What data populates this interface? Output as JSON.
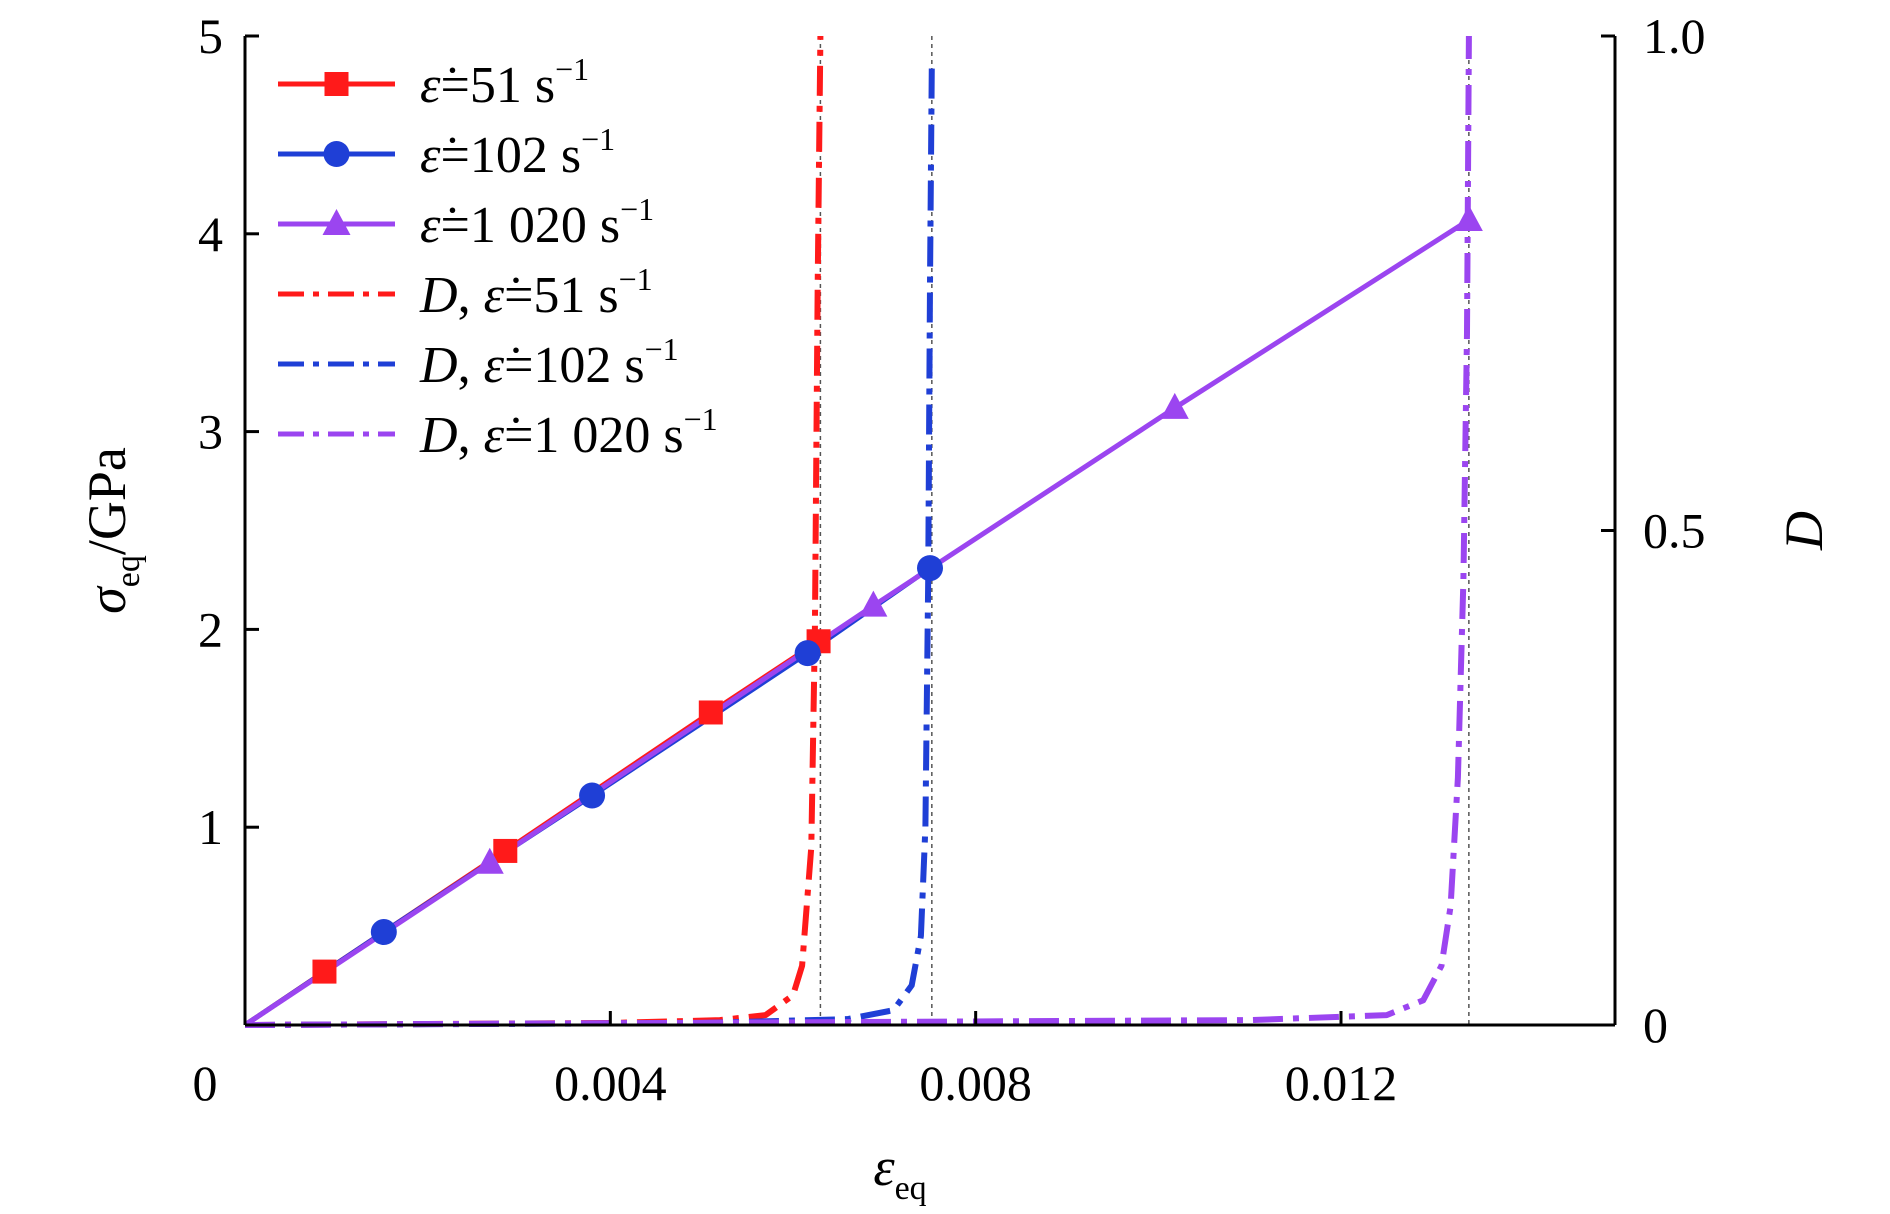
{
  "chart_data": {
    "type": "line",
    "x_axis": {
      "label_main": "ε",
      "label_sub": "eq",
      "range": [
        0,
        0.015
      ],
      "ticks": [
        {
          "value": 0,
          "label": "0"
        },
        {
          "value": 0.004,
          "label": "0.004"
        },
        {
          "value": 0.008,
          "label": "0.008"
        },
        {
          "value": 0.012,
          "label": "0.012"
        }
      ]
    },
    "y_axis": {
      "label_main": "σ",
      "label_sub": "eq",
      "label_unit": "/GPa",
      "range": [
        0,
        5
      ],
      "ticks": [
        {
          "value": 1,
          "label": "1"
        },
        {
          "value": 2,
          "label": "2"
        },
        {
          "value": 3,
          "label": "3"
        },
        {
          "value": 4,
          "label": "4"
        },
        {
          "value": 5,
          "label": "5"
        }
      ]
    },
    "y2_axis": {
      "label": "D",
      "range": [
        0,
        1
      ],
      "ticks": [
        {
          "value": 0,
          "label": "0"
        },
        {
          "value": 0.5,
          "label": "0.5"
        },
        {
          "value": 1,
          "label": "1.0"
        }
      ]
    },
    "stress_series": [
      {
        "legend": "ε̇=51 s⁻¹",
        "color": "#ff1a1a",
        "marker": "square",
        "x": [
          0,
          0.00087,
          0.00285,
          0.0051,
          0.00628
        ],
        "y": [
          0,
          0.27,
          0.88,
          1.58,
          1.94
        ]
      },
      {
        "legend": "ε̇=102 s⁻¹",
        "color": "#1f3fd6",
        "marker": "circle",
        "x": [
          0,
          0.00152,
          0.0038,
          0.00616,
          0.0075
        ],
        "y": [
          0,
          0.47,
          1.16,
          1.88,
          2.31
        ]
      },
      {
        "legend": "ε̇=1 020 s⁻¹",
        "color": "#9b45f0",
        "marker": "triangle",
        "x": [
          0,
          0.00268,
          0.00688,
          0.01018,
          0.0134
        ],
        "y": [
          0,
          0.82,
          2.12,
          3.12,
          4.07
        ]
      }
    ],
    "damage_series": [
      {
        "legend": "D, ε̇=51 s⁻¹",
        "color": "#ff1a1a",
        "x": [
          0,
          0.004,
          0.0052,
          0.0057,
          0.006,
          0.0061,
          0.0062,
          0.00624,
          0.00627,
          0.0063
        ],
        "y": [
          0,
          0.002,
          0.005,
          0.01,
          0.03,
          0.06,
          0.18,
          0.4,
          0.75,
          1.0
        ]
      },
      {
        "legend": "D, ε̇=102 s⁻¹",
        "color": "#1f3fd6",
        "x": [
          0,
          0.005,
          0.0066,
          0.0071,
          0.0073,
          0.0074,
          0.00745,
          0.00748,
          0.0075,
          0.00752
        ],
        "y": [
          0,
          0.002,
          0.006,
          0.015,
          0.04,
          0.09,
          0.2,
          0.45,
          0.75,
          0.97
        ]
      },
      {
        "legend": "D, ε̇=1 020 s⁻¹",
        "color": "#9b45f0",
        "x": [
          0,
          0.011,
          0.0125,
          0.0129,
          0.0131,
          0.0132,
          0.01328,
          0.01334,
          0.01338,
          0.0134
        ],
        "y": [
          0,
          0.005,
          0.01,
          0.025,
          0.06,
          0.12,
          0.25,
          0.45,
          0.7,
          1.0
        ]
      }
    ]
  }
}
